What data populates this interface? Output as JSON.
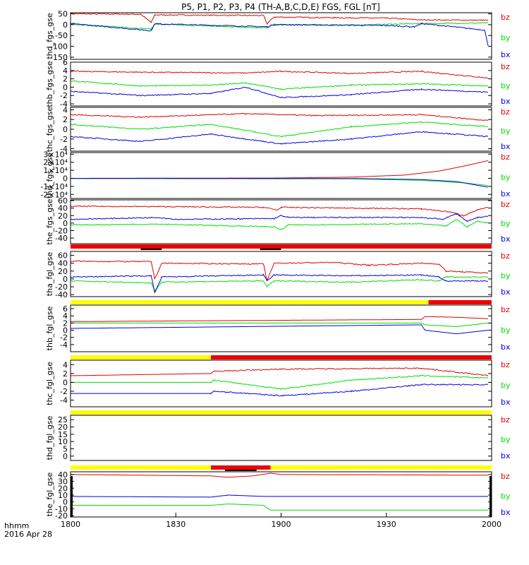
{
  "title": "P5, P1, P2, P3, P4 (TH-A,B,C,D,E) FGS, FGL [nT]",
  "colors": {
    "bz": "#e00000",
    "by": "#00dd00",
    "bx": "#0000e0",
    "bar_yellow": "#ffff00",
    "bar_red": "#ee0000",
    "axis": "#000000"
  },
  "xaxis": {
    "label_line1": "hhmm",
    "label_line2": "2016 Apr 28",
    "ticks": [
      "1800",
      "1830",
      "1900",
      "1930",
      "2000"
    ],
    "range_hhmm": [
      "18:00",
      "20:00"
    ]
  },
  "chart_data": [
    {
      "type": "line",
      "ylabel": "thd_fgs_gse",
      "ytick_labels": [
        "50",
        "0",
        "-50",
        "-100",
        "-150"
      ],
      "ylim": [
        -160,
        55
      ],
      "legend": [
        "bz",
        "by",
        "bx"
      ],
      "series": [
        {
          "name": "bz",
          "points": [
            [
              0,
              50
            ],
            [
              20,
              48
            ],
            [
              23,
              10
            ],
            [
              24,
              45
            ],
            [
              55,
              42
            ],
            [
              56,
              5
            ],
            [
              58,
              35
            ],
            [
              75,
              32
            ],
            [
              90,
              30
            ],
            [
              100,
              22
            ],
            [
              119,
              20
            ]
          ]
        },
        {
          "name": "by",
          "points": [
            [
              0,
              2
            ],
            [
              23,
              -20
            ],
            [
              24,
              2
            ],
            [
              56,
              -15
            ],
            [
              58,
              0
            ],
            [
              80,
              -2
            ],
            [
              100,
              5
            ],
            [
              119,
              8
            ]
          ]
        },
        {
          "name": "bx",
          "points": [
            [
              0,
              5
            ],
            [
              23,
              -28
            ],
            [
              24,
              4
            ],
            [
              56,
              -10
            ],
            [
              58,
              0
            ],
            [
              90,
              -4
            ],
            [
              98,
              -10
            ],
            [
              100,
              5
            ],
            [
              118,
              -25
            ],
            [
              119,
              -95
            ]
          ]
        }
      ]
    },
    {
      "type": "line",
      "ylabel": "thb_fgs_gse",
      "ytick_labels": [
        "6",
        "4",
        "2",
        "0",
        "-2",
        "-4"
      ],
      "ylim": [
        -4.5,
        6
      ],
      "legend": [
        "bz",
        "by",
        "bx"
      ],
      "series": [
        {
          "name": "bz",
          "points": [
            [
              0,
              3.8
            ],
            [
              20,
              3.6
            ],
            [
              50,
              3.4
            ],
            [
              60,
              3.8
            ],
            [
              80,
              3.3
            ],
            [
              100,
              3.8
            ],
            [
              119,
              2.2
            ]
          ]
        },
        {
          "name": "by",
          "points": [
            [
              0,
              1.5
            ],
            [
              20,
              0.3
            ],
            [
              40,
              0.5
            ],
            [
              50,
              1.0
            ],
            [
              60,
              -0.5
            ],
            [
              80,
              0.5
            ],
            [
              100,
              0.8
            ],
            [
              119,
              0.3
            ]
          ]
        },
        {
          "name": "bx",
          "points": [
            [
              0,
              -1.0
            ],
            [
              20,
              -2.0
            ],
            [
              40,
              -1.5
            ],
            [
              50,
              0
            ],
            [
              60,
              -2.5
            ],
            [
              80,
              -1.8
            ],
            [
              100,
              -0.5
            ],
            [
              119,
              -1.2
            ]
          ]
        }
      ]
    },
    {
      "type": "line",
      "ylabel": "thc_fgs_gse",
      "ytick_labels": [
        "4",
        "2",
        "0",
        "-2",
        "-4"
      ],
      "ylim": [
        -4.5,
        4.5
      ],
      "legend": [
        "bz",
        "by",
        "bx"
      ],
      "series": [
        {
          "name": "bz",
          "points": [
            [
              0,
              3.0
            ],
            [
              20,
              2.5
            ],
            [
              50,
              3.2
            ],
            [
              70,
              2.8
            ],
            [
              100,
              3.0
            ],
            [
              119,
              1.8
            ]
          ]
        },
        {
          "name": "by",
          "points": [
            [
              0,
              1.0
            ],
            [
              20,
              0
            ],
            [
              40,
              1.0
            ],
            [
              60,
              -1.5
            ],
            [
              80,
              0.5
            ],
            [
              100,
              1.5
            ],
            [
              119,
              0.5
            ]
          ]
        },
        {
          "name": "bx",
          "points": [
            [
              0,
              -1.5
            ],
            [
              20,
              -2.5
            ],
            [
              40,
              -1.0
            ],
            [
              60,
              -3.0
            ],
            [
              80,
              -2.0
            ],
            [
              100,
              -0.5
            ],
            [
              119,
              -1.5
            ]
          ]
        }
      ]
    },
    {
      "type": "line",
      "ylabel": "thd_fgs_gse",
      "ytick_labels": [
        "3×10⁴",
        "2×10⁴",
        "1×10⁴",
        "0",
        "-1×10⁴",
        "-2×10⁴"
      ],
      "ylim": [
        -25000,
        32000
      ],
      "legend": [
        "bz",
        "by",
        "bx"
      ],
      "series": [
        {
          "name": "bz",
          "points": [
            [
              0,
              0
            ],
            [
              60,
              400
            ],
            [
              80,
              1500
            ],
            [
              95,
              4000
            ],
            [
              105,
              9000
            ],
            [
              113,
              16000
            ],
            [
              119,
              22000
            ]
          ]
        },
        {
          "name": "by",
          "points": [
            [
              0,
              -300
            ],
            [
              80,
              -600
            ],
            [
              100,
              -2500
            ],
            [
              113,
              -6000
            ],
            [
              119,
              -9000
            ]
          ]
        },
        {
          "name": "bx",
          "points": [
            [
              0,
              -100
            ],
            [
              80,
              -200
            ],
            [
              100,
              -1500
            ],
            [
              110,
              -4000
            ],
            [
              119,
              -11000
            ]
          ]
        }
      ]
    },
    {
      "type": "line",
      "ylabel": "the_fgs_gse",
      "ytick_labels": [
        "60",
        "40",
        "20",
        "0",
        "-20",
        "-40"
      ],
      "ylim": [
        -55,
        62
      ],
      "legend": [
        "bz",
        "by",
        "bx"
      ],
      "series": [
        {
          "name": "bz",
          "points": [
            [
              0,
              45
            ],
            [
              25,
              44
            ],
            [
              55,
              42
            ],
            [
              59,
              35
            ],
            [
              60,
              42
            ],
            [
              100,
              38
            ],
            [
              108,
              30
            ],
            [
              112,
              20
            ],
            [
              116,
              35
            ],
            [
              119,
              42
            ]
          ]
        },
        {
          "name": "by",
          "points": [
            [
              0,
              -5
            ],
            [
              25,
              -3
            ],
            [
              58,
              -10
            ],
            [
              60,
              -18
            ],
            [
              62,
              -5
            ],
            [
              100,
              -2
            ],
            [
              107,
              -8
            ],
            [
              110,
              10
            ],
            [
              113,
              -10
            ],
            [
              116,
              5
            ],
            [
              119,
              0
            ]
          ]
        },
        {
          "name": "bx",
          "points": [
            [
              0,
              10
            ],
            [
              25,
              15
            ],
            [
              30,
              10
            ],
            [
              58,
              12
            ],
            [
              60,
              20
            ],
            [
              62,
              15
            ],
            [
              100,
              15
            ],
            [
              106,
              10
            ],
            [
              110,
              25
            ],
            [
              113,
              5
            ],
            [
              116,
              15
            ],
            [
              119,
              18
            ]
          ]
        }
      ]
    },
    {
      "type": "line",
      "ylabel": "tha_fgl_gse",
      "ytick_labels": [
        "60",
        "40",
        "20",
        "0",
        "-20",
        "-40"
      ],
      "ylim": [
        -45,
        70
      ],
      "legend": [
        "bz",
        "by",
        "bx"
      ],
      "series": [
        {
          "name": "bz",
          "points": [
            [
              0,
              45
            ],
            [
              23,
              44
            ],
            [
              24,
              0
            ],
            [
              26,
              40
            ],
            [
              55,
              38
            ],
            [
              56,
              -5
            ],
            [
              58,
              40
            ],
            [
              75,
              42
            ],
            [
              85,
              35
            ],
            [
              100,
              40
            ],
            [
              105,
              38
            ],
            [
              107,
              20
            ],
            [
              119,
              15
            ]
          ]
        },
        {
          "name": "by",
          "points": [
            [
              0,
              -5
            ],
            [
              23,
              -10
            ],
            [
              24,
              -30
            ],
            [
              26,
              -8
            ],
            [
              55,
              -5
            ],
            [
              56,
              -20
            ],
            [
              58,
              -5
            ],
            [
              80,
              -8
            ],
            [
              100,
              -2
            ],
            [
              105,
              -5
            ],
            [
              107,
              5
            ],
            [
              119,
              5
            ]
          ]
        },
        {
          "name": "bx",
          "points": [
            [
              0,
              5
            ],
            [
              23,
              8
            ],
            [
              24,
              -35
            ],
            [
              26,
              5
            ],
            [
              55,
              10
            ],
            [
              56,
              -5
            ],
            [
              58,
              10
            ],
            [
              80,
              8
            ],
            [
              100,
              10
            ],
            [
              105,
              5
            ],
            [
              107,
              -5
            ],
            [
              119,
              -5
            ]
          ]
        }
      ]
    },
    {
      "type": "line",
      "ylabel": "thb_fgl_gse",
      "ytick_labels": [
        "6",
        "4",
        "2",
        "0",
        "-2",
        "-4"
      ],
      "ylim": [
        -6,
        7
      ],
      "legend": [
        "bz",
        "by",
        "bx"
      ],
      "series": [
        {
          "name": "bz",
          "points": [
            [
              0,
              2.4
            ],
            [
              100,
              3.0
            ],
            [
              101,
              3.8
            ],
            [
              110,
              3.6
            ],
            [
              119,
              3.2
            ]
          ]
        },
        {
          "name": "by",
          "points": [
            [
              0,
              2.0
            ],
            [
              100,
              2.0
            ],
            [
              101,
              1.5
            ],
            [
              110,
              1.0
            ],
            [
              119,
              2.0
            ]
          ]
        },
        {
          "name": "bx",
          "points": [
            [
              0,
              0.5
            ],
            [
              100,
              1.5
            ],
            [
              101,
              0
            ],
            [
              110,
              -1.0
            ],
            [
              119,
              0
            ]
          ]
        }
      ]
    },
    {
      "type": "line",
      "ylabel": "thc_fgl_gse",
      "ytick_labels": [
        "4",
        "2",
        "0",
        "-2",
        "-4"
      ],
      "ylim": [
        -5.5,
        5
      ],
      "legend": [
        "bz",
        "by",
        "bx"
      ],
      "series": [
        {
          "name": "bz",
          "points": [
            [
              0,
              1.5
            ],
            [
              40,
              2.0
            ],
            [
              41,
              2.5
            ],
            [
              60,
              3.0
            ],
            [
              100,
              3.2
            ],
            [
              119,
              1.5
            ]
          ]
        },
        {
          "name": "by",
          "points": [
            [
              0,
              0
            ],
            [
              40,
              0
            ],
            [
              41,
              0.5
            ],
            [
              60,
              -1.5
            ],
            [
              80,
              0.5
            ],
            [
              100,
              1.5
            ],
            [
              119,
              1.0
            ]
          ]
        },
        {
          "name": "bx",
          "points": [
            [
              0,
              -2.5
            ],
            [
              40,
              -2.5
            ],
            [
              41,
              -2.0
            ],
            [
              60,
              -3.0
            ],
            [
              80,
              -2.0
            ],
            [
              100,
              -0.5
            ],
            [
              119,
              -0.5
            ]
          ]
        }
      ]
    },
    {
      "type": "line",
      "ylabel": "thd_fgl_gse",
      "ytick_labels": [
        "25",
        "20",
        "15",
        "10",
        "5",
        "0"
      ],
      "ylim": [
        -3,
        28
      ],
      "legend": [
        "bz",
        "by",
        "bx"
      ],
      "series": []
    },
    {
      "type": "line",
      "ylabel": "the_fgl_gse",
      "ytick_labels": [
        "40",
        "30",
        "20",
        "10",
        "0",
        "-10",
        "-20"
      ],
      "ylim": [
        -22,
        44
      ],
      "legend": [
        "bz",
        "by",
        "bx"
      ],
      "series": [
        {
          "name": "bz",
          "points": [
            [
              0,
              40
            ],
            [
              40,
              38
            ],
            [
              45,
              36
            ],
            [
              52,
              38
            ],
            [
              57,
              42
            ],
            [
              60,
              40
            ],
            [
              119,
              39
            ]
          ]
        },
        {
          "name": "by",
          "points": [
            [
              0,
              -5
            ],
            [
              40,
              -5
            ],
            [
              45,
              -3
            ],
            [
              55,
              -5
            ],
            [
              57,
              -12
            ],
            [
              119,
              -12
            ]
          ]
        },
        {
          "name": "bx",
          "points": [
            [
              0,
              8
            ],
            [
              40,
              7
            ],
            [
              45,
              10
            ],
            [
              55,
              8
            ],
            [
              60,
              8
            ],
            [
              119,
              8
            ]
          ]
        }
      ]
    }
  ]
}
